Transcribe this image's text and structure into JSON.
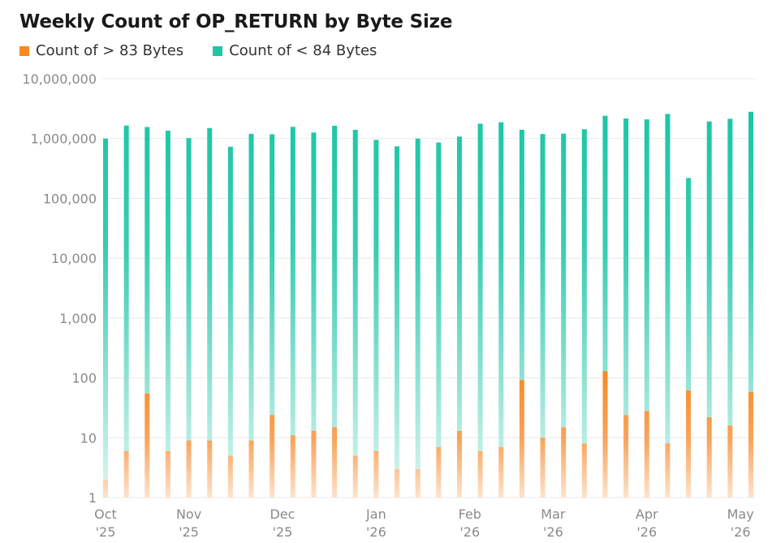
{
  "chart_data": {
    "type": "bar",
    "title": "Weekly Count of OP_RETURN by Byte Size",
    "xlabel": "",
    "ylabel": "",
    "yscale": "log",
    "ylim": [
      1,
      10000000
    ],
    "yticks": [
      "10,000,000",
      "1,000,000",
      "100,000",
      "10,000",
      "1,000",
      "100",
      "10",
      "1"
    ],
    "grid": true,
    "legend_position": "top-left",
    "colors": {
      "over83": "#f7891f",
      "under84": "#1cc6a7"
    },
    "xticks": [
      {
        "week": 0,
        "month": "Oct",
        "year": "'25"
      },
      {
        "week": 4,
        "month": "Nov",
        "year": "'25"
      },
      {
        "week": 8.5,
        "month": "Dec",
        "year": "'25"
      },
      {
        "week": 13,
        "month": "Jan",
        "year": "'26"
      },
      {
        "week": 17.5,
        "month": "Feb",
        "year": "'26"
      },
      {
        "week": 21.5,
        "month": "Mar",
        "year": "'26"
      },
      {
        "week": 26,
        "month": "Apr",
        "year": "'26"
      },
      {
        "week": 30.5,
        "month": "May",
        "year": "'26"
      }
    ],
    "series": [
      {
        "name": "Count of > 83 Bytes",
        "values": [
          2,
          6,
          55,
          6,
          9,
          9,
          5,
          9,
          24,
          11,
          13,
          15,
          5,
          6,
          3,
          3,
          7,
          13,
          6,
          7,
          92,
          10,
          15,
          8,
          130,
          24,
          28,
          8,
          62,
          22,
          16,
          58
        ]
      },
      {
        "name": "Count of < 84 Bytes",
        "values": [
          1000000,
          1650000,
          1560000,
          1360000,
          1020000,
          1500000,
          730000,
          1200000,
          1180000,
          1570000,
          1260000,
          1640000,
          1400000,
          950000,
          740000,
          1000000,
          860000,
          1080000,
          1770000,
          1870000,
          1400000,
          1190000,
          1210000,
          1430000,
          2400000,
          2170000,
          2090000,
          2580000,
          220000,
          1930000,
          2140000,
          2800000
        ]
      }
    ]
  }
}
